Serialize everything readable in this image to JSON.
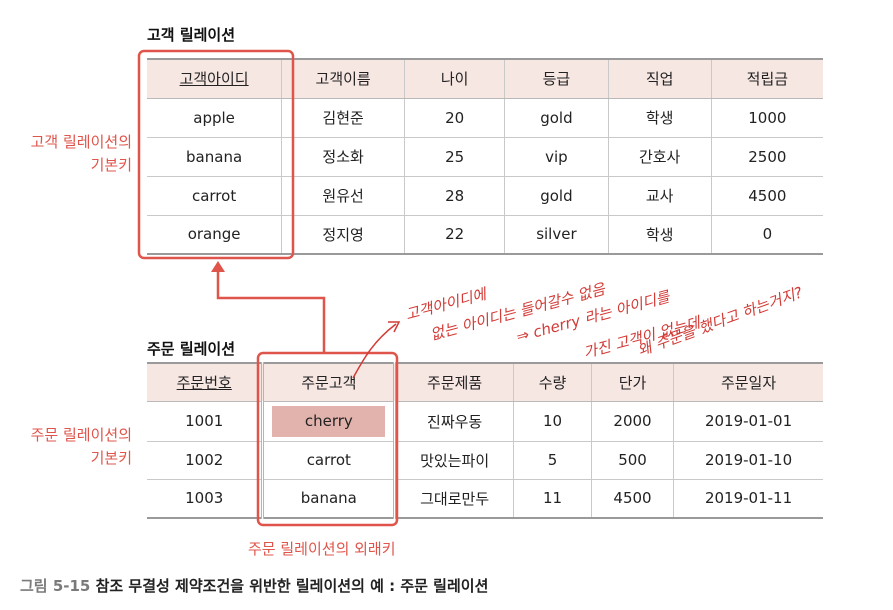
{
  "customer": {
    "title": "고객 릴레이션",
    "headers": [
      "고객아이디",
      "고객이름",
      "나이",
      "등급",
      "직업",
      "적립금"
    ],
    "rows": [
      [
        "apple",
        "김현준",
        "20",
        "gold",
        "학생",
        "1000"
      ],
      [
        "banana",
        "정소화",
        "25",
        "vip",
        "간호사",
        "2500"
      ],
      [
        "carrot",
        "원유선",
        "28",
        "gold",
        "교사",
        "4500"
      ],
      [
        "orange",
        "정지영",
        "22",
        "silver",
        "학생",
        "0"
      ]
    ],
    "pk_label_line1": "고객 릴레이션의",
    "pk_label_line2": "기본키"
  },
  "order": {
    "title": "주문 릴레이션",
    "headers": [
      "주문번호",
      "주문고객",
      "주문제품",
      "수량",
      "단가",
      "주문일자"
    ],
    "rows": [
      [
        "1001",
        "cherry",
        "진짜우동",
        "10",
        "2000",
        "2019-01-01"
      ],
      [
        "1002",
        "carrot",
        "맛있는파이",
        "5",
        "500",
        "2019-01-10"
      ],
      [
        "1003",
        "banana",
        "그대로만두",
        "11",
        "4500",
        "2019-01-11"
      ]
    ],
    "pk_label_line1": "주문 릴레이션의",
    "pk_label_line2": "기본키",
    "fk_label": "주문 릴레이션의 외래키"
  },
  "handwriting": {
    "lines": [
      "고객아이디에",
      "없는 아이디는 들어갈수 없음",
      "⇒ cherry 라는 아이디를",
      "가진 고객이 없는데",
      "왜 주문을 했다고 하는거지?"
    ]
  },
  "caption": {
    "number": "그림 5-15",
    "text": "참조 무결성 제약조건을 위반한 릴레이션의 예 : 주문 릴레이션"
  },
  "colors": {
    "accent": "#e0554b",
    "header_bg": "#f7e7e3",
    "highlight": "#e2b2ac"
  }
}
